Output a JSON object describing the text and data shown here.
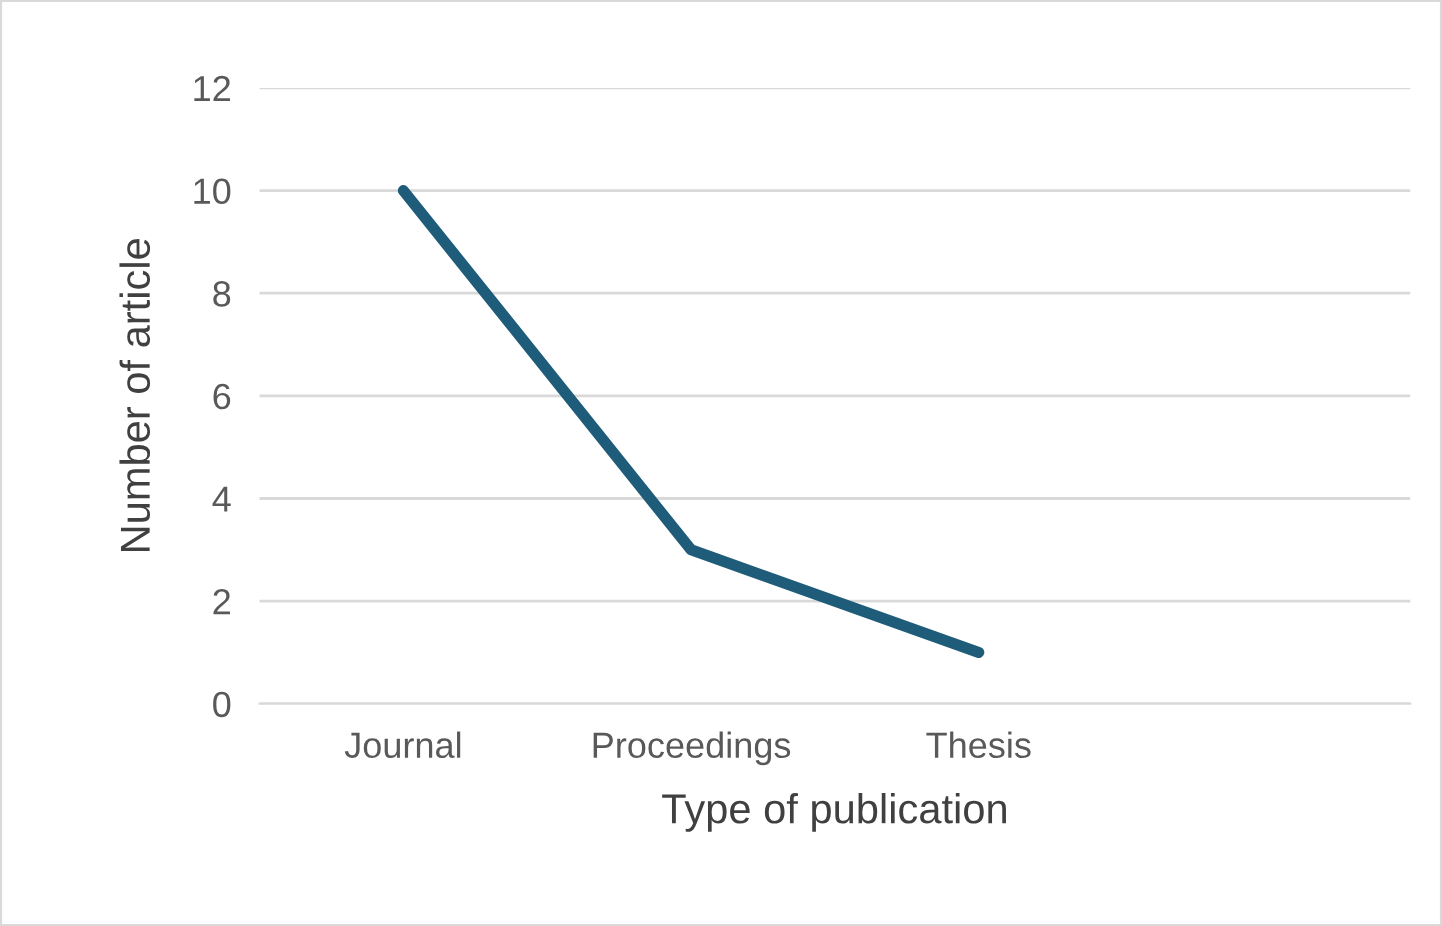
{
  "chart_data": {
    "type": "line",
    "xlabel": "Type of publication",
    "ylabel": "Number of article",
    "categories": [
      "Journal",
      "Proceedings",
      "Thesis",
      null
    ],
    "series": [
      {
        "color": "#1f5c7a",
        "values": [
          10,
          3,
          1,
          null
        ]
      }
    ],
    "ylim": [
      0,
      12
    ],
    "yticks": [
      0,
      2,
      4,
      6,
      8,
      10,
      12
    ],
    "grid": "y",
    "legend": false,
    "marker": "none",
    "line_style": "solid"
  }
}
